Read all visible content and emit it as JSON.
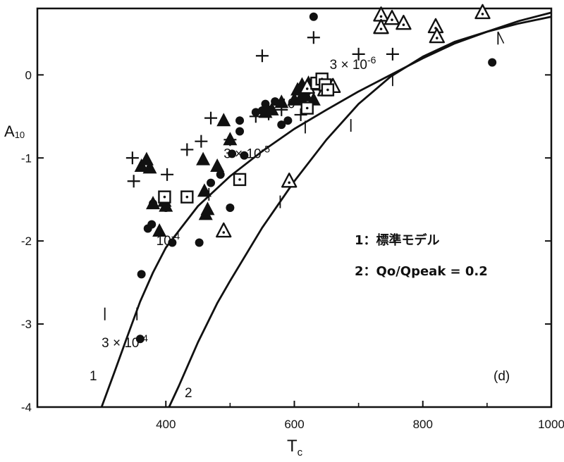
{
  "chart_data": {
    "type": "scatter",
    "xlabel": "T",
    "xlabel_sub": "c",
    "ylabel": "A",
    "ylabel_sub": "10",
    "xlim": [
      200,
      1000
    ],
    "ylim": [
      -4,
      0.8
    ],
    "x_ticks": [
      400,
      600,
      800,
      1000
    ],
    "y_ticks": [
      0,
      -1,
      -2,
      -3,
      -4
    ],
    "panel_label": "(d)",
    "legend": [
      {
        "key": "1",
        "text": "：標準モデル"
      },
      {
        "key": "2",
        "text": "：Qo/Qpeak = 0.2"
      }
    ],
    "curve_labels": [
      "1",
      "2"
    ],
    "curves": [
      {
        "name": "1",
        "x": [
          300,
          320,
          340,
          360,
          380,
          400,
          450,
          500,
          550,
          600,
          650,
          700,
          750,
          800,
          850,
          900,
          950,
          1000
        ],
        "y": [
          -4.0,
          -3.58,
          -3.15,
          -2.73,
          -2.38,
          -2.08,
          -1.58,
          -1.22,
          -0.92,
          -0.65,
          -0.42,
          -0.2,
          0.0,
          0.2,
          0.38,
          0.52,
          0.65,
          0.75
        ]
      },
      {
        "name": "2",
        "x": [
          405,
          420,
          450,
          480,
          500,
          550,
          600,
          650,
          700,
          750,
          800,
          850,
          900,
          950,
          1000
        ],
        "y": [
          -4.0,
          -3.75,
          -3.22,
          -2.75,
          -2.48,
          -1.84,
          -1.28,
          -0.78,
          -0.35,
          -0.02,
          0.22,
          0.4,
          0.52,
          0.62,
          0.7
        ]
      }
    ],
    "curve_ticks": [
      {
        "x": 355,
        "y": -2.87,
        "dx": -1,
        "dy": 1.2,
        "text": ""
      },
      {
        "x": 305,
        "y": -2.87,
        "dx": 0,
        "dy": 1.0,
        "text": "3 × 10",
        "exp": "-4",
        "label_x": 300,
        "label_y": -3.28
      },
      {
        "x": 578,
        "y": -1.52,
        "dx": 0,
        "dy": 1.0,
        "text": "10",
        "exp": "-4",
        "label_x": 385,
        "label_y": -2.05
      },
      {
        "x": 688,
        "y": -0.6,
        "dx": 0,
        "dy": 1.0,
        "text": "3 × 10",
        "exp": "-5",
        "label_x": 490,
        "label_y": -1.0
      },
      {
        "x": 753,
        "y": -0.05,
        "dx": 0,
        "dy": 1.0,
        "text": "10",
        "exp": "-5",
        "label_x": 578,
        "label_y": -0.4
      },
      {
        "x": 917,
        "y": 0.45,
        "dx": 0,
        "dy": 1.0,
        "text": "3 × 10",
        "exp": "-6",
        "label_x": 655,
        "label_y": 0.07
      },
      {
        "x": 617,
        "y": -0.62,
        "dx": 0,
        "dy": 1.0,
        "text": ""
      },
      {
        "x": 467,
        "y": -1.43,
        "dx": 0,
        "dy": 1.0,
        "text": ""
      }
    ],
    "series": [
      {
        "marker": "circle",
        "x": [
          362,
          360,
          372,
          378,
          380,
          400,
          410,
          452,
          470,
          485,
          500,
          503,
          515,
          522,
          515,
          540,
          550,
          555,
          560,
          570,
          580,
          590,
          620,
          630
        ],
        "y": [
          -2.4,
          -3.18,
          -1.85,
          -1.8,
          -1.55,
          -1.6,
          -2.02,
          -2.02,
          -1.3,
          -1.2,
          -1.6,
          -0.95,
          -0.68,
          -0.97,
          -0.55,
          -0.45,
          -0.43,
          -0.35,
          -0.42,
          -0.32,
          -0.6,
          -0.55,
          -0.2,
          0.7
        ]
      },
      {
        "marker": "plus",
        "x": [
          348,
          350,
          402,
          433,
          455,
          470,
          500,
          540,
          550,
          560,
          580,
          610,
          630,
          700,
          753
        ],
        "y": [
          -1.0,
          -1.28,
          -1.2,
          -0.9,
          -0.8,
          -0.52,
          -0.78,
          -0.5,
          0.23,
          -0.47,
          -0.42,
          -0.48,
          0.45,
          0.25,
          0.25
        ]
      },
      {
        "marker": "filled-triangle",
        "x": [
          362,
          370,
          375,
          380,
          390,
          398,
          400,
          458,
          460,
          462,
          465,
          480,
          490,
          500,
          555,
          565,
          580,
          600,
          605,
          610,
          612,
          618,
          622,
          630,
          640
        ],
        "y": [
          -1.1,
          -1.02,
          -1.12,
          -1.55,
          -1.88,
          -1.52,
          -1.58,
          -1.02,
          -1.4,
          -1.68,
          -1.62,
          -1.1,
          -0.55,
          -0.78,
          -0.45,
          -0.42,
          -0.33,
          -0.3,
          -0.18,
          -0.28,
          -0.12,
          -0.25,
          -0.1,
          -0.3,
          -0.12
        ]
      },
      {
        "marker": "dot-triangle",
        "x": [
          490,
          592,
          620,
          648,
          660,
          735,
          735,
          752,
          770,
          820,
          822,
          893
        ],
        "y": [
          -1.88,
          -1.28,
          -0.15,
          -0.18,
          -0.14,
          0.72,
          0.57,
          0.68,
          0.62,
          0.58,
          0.46,
          0.75
        ]
      },
      {
        "marker": "dot-square",
        "x": [
          398,
          433,
          515,
          620,
          635,
          643,
          648,
          652
        ],
        "y": [
          -1.47,
          -1.47,
          -1.26,
          -0.4,
          -0.1,
          -0.05,
          -0.12,
          -0.18
        ]
      }
    ],
    "extra_point": {
      "x": 908,
      "y": 0.15
    }
  }
}
